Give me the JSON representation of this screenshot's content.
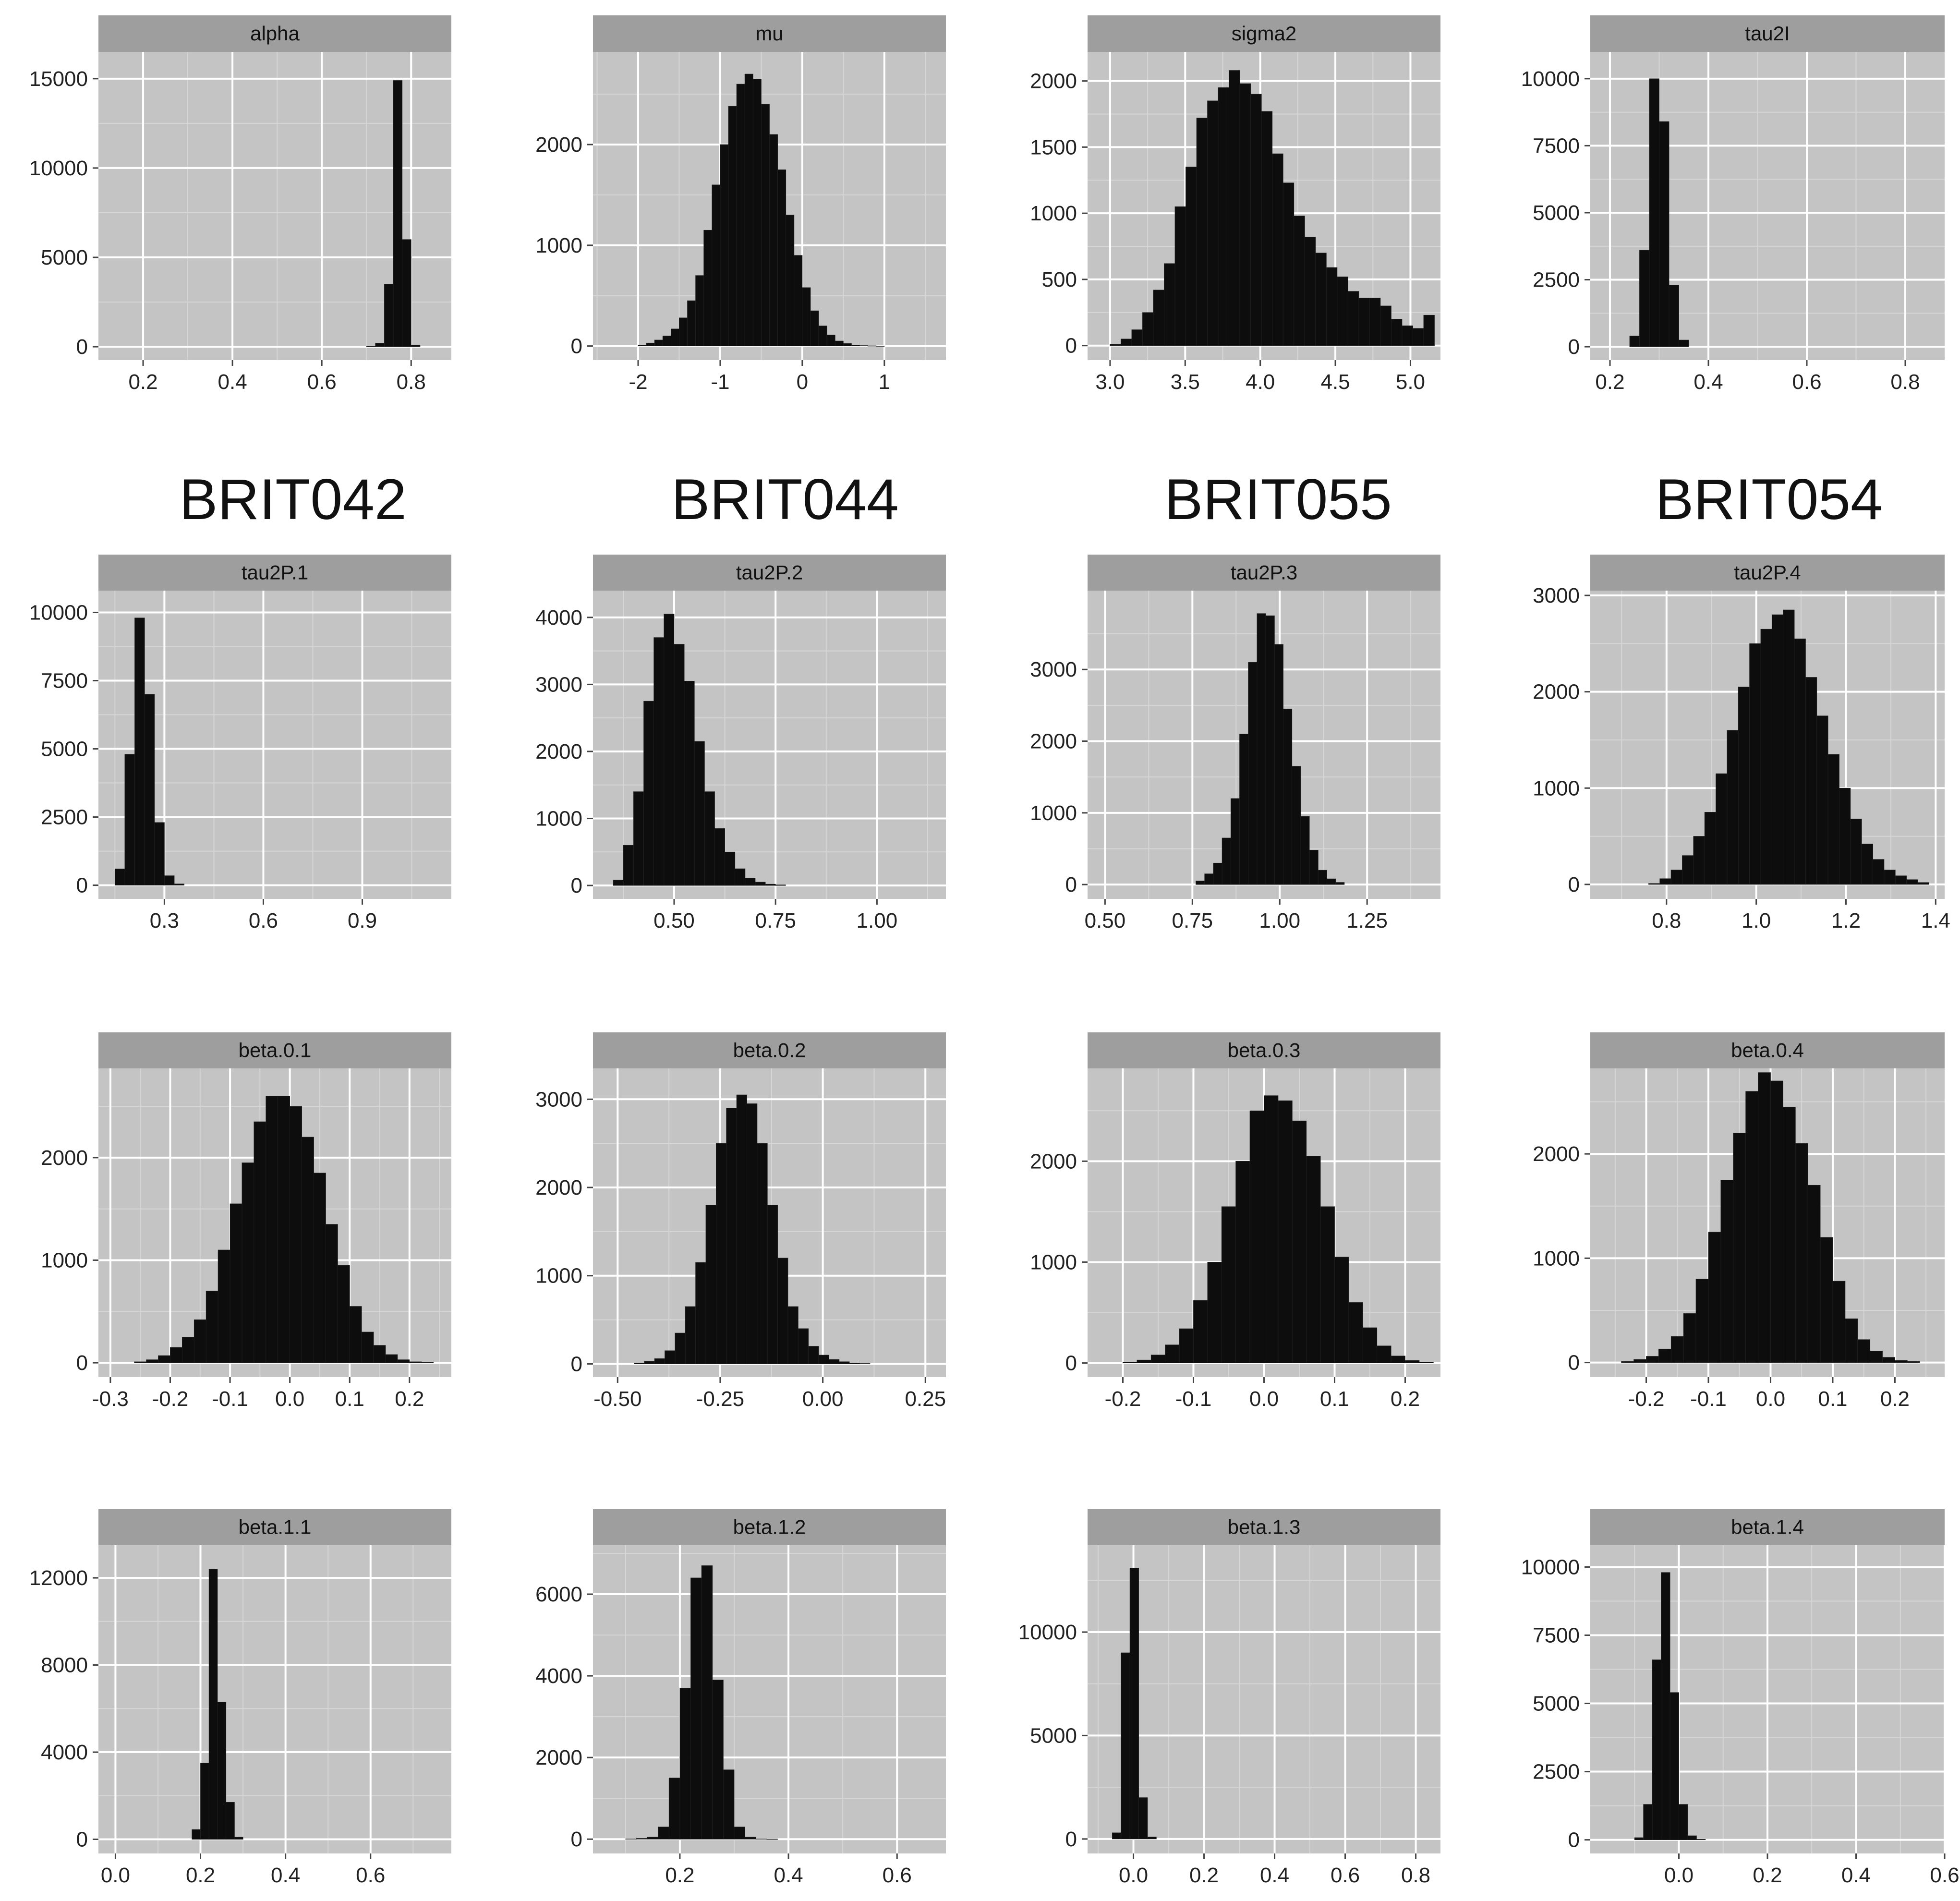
{
  "colors": {
    "panel": "#c4c4c4",
    "grid_major": "#ffffff",
    "grid_minor": "#d6d6d6",
    "strip": "#9e9e9e",
    "bar": "#0d0d0d",
    "tick_text": "#222222"
  },
  "group_titles": [
    "BRIT042",
    "BRIT044",
    "BRIT055",
    "BRIT054"
  ],
  "chart_data": [
    {
      "type": "histogram",
      "title": "alpha",
      "x_ticks": [
        0.2,
        0.4,
        0.6,
        0.8
      ],
      "x_tick_labels": [
        "0.2",
        "0.4",
        "0.6",
        "0.8"
      ],
      "xlim": [
        0.1,
        0.89
      ],
      "y_ticks": [
        0,
        5000,
        10000,
        15000
      ],
      "y_tick_labels": [
        "0",
        "5000",
        "10000",
        "15000"
      ],
      "ylim": [
        -750,
        16500
      ],
      "bin_start": 0.7,
      "bin_width": 0.02,
      "values": [
        20,
        200,
        3500,
        14900,
        6000,
        100
      ]
    },
    {
      "type": "histogram",
      "title": "mu",
      "x_ticks": [
        -2,
        -1,
        0,
        1
      ],
      "x_tick_labels": [
        "-2",
        "-1",
        "0",
        "1"
      ],
      "xlim": [
        -2.55,
        1.75
      ],
      "y_ticks": [
        0,
        1000,
        2000
      ],
      "y_tick_labels": [
        "0",
        "1000",
        "2000"
      ],
      "ylim": [
        -140,
        2920
      ],
      "bin_start": -2.0,
      "bin_width": 0.1,
      "values": [
        10,
        30,
        60,
        100,
        170,
        280,
        450,
        700,
        1150,
        1600,
        2000,
        2380,
        2600,
        2700,
        2650,
        2400,
        2100,
        1750,
        1300,
        900,
        580,
        350,
        200,
        110,
        50,
        25,
        10,
        5,
        3,
        1
      ]
    },
    {
      "type": "histogram",
      "title": "sigma2",
      "x_ticks": [
        3.0,
        3.5,
        4.0,
        4.5,
        5.0
      ],
      "x_tick_labels": [
        "3.0",
        "3.5",
        "4.0",
        "4.5",
        "5.0"
      ],
      "xlim": [
        2.85,
        5.2
      ],
      "y_ticks": [
        0,
        500,
        1000,
        1500,
        2000
      ],
      "y_tick_labels": [
        "0",
        "500",
        "1000",
        "1500",
        "2000"
      ],
      "ylim": [
        -110,
        2220
      ],
      "bin_start": 3.0,
      "bin_width": 0.072,
      "values": [
        10,
        50,
        120,
        250,
        420,
        620,
        1050,
        1350,
        1720,
        1850,
        1950,
        2080,
        1980,
        1900,
        1770,
        1450,
        1230,
        980,
        820,
        700,
        590,
        520,
        410,
        360,
        360,
        300,
        200,
        150,
        130,
        230
      ]
    },
    {
      "type": "histogram",
      "title": "tau2I",
      "x_ticks": [
        0.2,
        0.4,
        0.6,
        0.8
      ],
      "x_tick_labels": [
        "0.2",
        "0.4",
        "0.6",
        "0.8"
      ],
      "xlim": [
        0.16,
        0.88
      ],
      "y_ticks": [
        0,
        2500,
        5000,
        7500,
        10000
      ],
      "y_tick_labels": [
        "0",
        "2500",
        "5000",
        "7500",
        "10000"
      ],
      "ylim": [
        -500,
        11000
      ],
      "bin_start": 0.24,
      "bin_width": 0.02,
      "values": [
        400,
        3600,
        10000,
        8400,
        2300,
        250
      ]
    },
    {
      "type": "histogram",
      "title": "tau2P.1",
      "x_ticks": [
        0.3,
        0.6,
        0.9
      ],
      "x_tick_labels": [
        "0.3",
        "0.6",
        "0.9"
      ],
      "xlim": [
        0.1,
        1.17
      ],
      "y_ticks": [
        0,
        2500,
        5000,
        7500,
        10000
      ],
      "y_tick_labels": [
        "0",
        "2500",
        "5000",
        "7500",
        "10000"
      ],
      "ylim": [
        -500,
        10800
      ],
      "bin_start": 0.15,
      "bin_width": 0.03,
      "values": [
        600,
        4800,
        9800,
        7000,
        2300,
        350,
        50
      ]
    },
    {
      "type": "histogram",
      "title": "tau2P.2",
      "x_ticks": [
        0.5,
        0.75,
        1.0
      ],
      "x_tick_labels": [
        "0.50",
        "0.75",
        "1.00"
      ],
      "xlim": [
        0.3,
        1.17
      ],
      "y_ticks": [
        0,
        1000,
        2000,
        3000,
        4000
      ],
      "y_tick_labels": [
        "0",
        "1000",
        "2000",
        "3000",
        "4000"
      ],
      "ylim": [
        -200,
        4400
      ],
      "bin_start": 0.35,
      "bin_width": 0.025,
      "values": [
        80,
        600,
        1400,
        2750,
        3700,
        4050,
        3600,
        3050,
        2150,
        1400,
        850,
        500,
        250,
        110,
        50,
        20,
        10
      ]
    },
    {
      "type": "histogram",
      "title": "tau2P.3",
      "x_ticks": [
        0.5,
        0.75,
        1.0,
        1.25
      ],
      "x_tick_labels": [
        "0.50",
        "0.75",
        "1.00",
        "1.25"
      ],
      "xlim": [
        0.45,
        1.46
      ],
      "y_ticks": [
        0,
        1000,
        2000,
        3000
      ],
      "y_tick_labels": [
        "0",
        "1000",
        "2000",
        "3000"
      ],
      "ylim": [
        -200,
        4100
      ],
      "bin_start": 0.76,
      "bin_width": 0.025,
      "values": [
        50,
        150,
        300,
        650,
        1200,
        2100,
        3100,
        3780,
        3750,
        3350,
        2450,
        1650,
        950,
        480,
        200,
        80,
        30
      ]
    },
    {
      "type": "histogram",
      "title": "tau2P.4",
      "x_ticks": [
        0.8,
        1.0,
        1.2,
        1.4
      ],
      "x_tick_labels": [
        "0.8",
        "1.0",
        "1.2",
        "1.4"
      ],
      "xlim": [
        0.63,
        1.42
      ],
      "y_ticks": [
        0,
        1000,
        2000,
        3000
      ],
      "y_tick_labels": [
        "0",
        "1000",
        "2000",
        "3000"
      ],
      "ylim": [
        -150,
        3050
      ],
      "bin_start": 0.76,
      "bin_width": 0.025,
      "values": [
        10,
        60,
        150,
        300,
        500,
        750,
        1150,
        1600,
        2050,
        2500,
        2650,
        2800,
        2850,
        2550,
        2150,
        1750,
        1350,
        1000,
        680,
        420,
        260,
        150,
        90,
        50,
        20
      ]
    },
    {
      "type": "histogram",
      "title": "beta.0.1",
      "x_ticks": [
        -0.3,
        -0.2,
        -0.1,
        0.0,
        0.1,
        0.2
      ],
      "x_tick_labels": [
        "-0.3",
        "-0.2",
        "-0.1",
        "0.0",
        "0.1",
        "0.2"
      ],
      "xlim": [
        -0.32,
        0.27
      ],
      "y_ticks": [
        0,
        1000,
        2000
      ],
      "y_tick_labels": [
        "0",
        "1000",
        "2000"
      ],
      "ylim": [
        -140,
        2870
      ],
      "bin_start": -0.26,
      "bin_width": 0.02,
      "values": [
        10,
        30,
        70,
        150,
        250,
        420,
        700,
        1100,
        1550,
        1950,
        2350,
        2600,
        2600,
        2500,
        2200,
        1850,
        1350,
        950,
        550,
        300,
        170,
        80,
        30,
        10,
        5
      ]
    },
    {
      "type": "histogram",
      "title": "beta.0.2",
      "x_ticks": [
        -0.5,
        -0.25,
        0.0,
        0.25
      ],
      "x_tick_labels": [
        "-0.50",
        "-0.25",
        "0.00",
        "0.25"
      ],
      "xlim": [
        -0.56,
        0.3
      ],
      "y_ticks": [
        0,
        1000,
        2000,
        3000
      ],
      "y_tick_labels": [
        "0",
        "1000",
        "2000",
        "3000"
      ],
      "ylim": [
        -150,
        3350
      ],
      "bin_start": -0.46,
      "bin_width": 0.025,
      "values": [
        10,
        30,
        60,
        150,
        350,
        650,
        1150,
        1800,
        2500,
        2900,
        3050,
        2950,
        2500,
        1800,
        1200,
        650,
        400,
        200,
        100,
        50,
        25,
        10,
        5
      ]
    },
    {
      "type": "histogram",
      "title": "beta.0.3",
      "x_ticks": [
        -0.2,
        -0.1,
        0.0,
        0.1,
        0.2
      ],
      "x_tick_labels": [
        "-0.2",
        "-0.1",
        "0.0",
        "0.1",
        "0.2"
      ],
      "xlim": [
        -0.25,
        0.25
      ],
      "y_ticks": [
        0,
        1000,
        2000
      ],
      "y_tick_labels": [
        "0",
        "1000",
        "2000"
      ],
      "ylim": [
        -140,
        2920
      ],
      "bin_start": -0.2,
      "bin_width": 0.02,
      "values": [
        10,
        30,
        80,
        180,
        340,
        620,
        1000,
        1550,
        2000,
        2500,
        2650,
        2600,
        2400,
        2050,
        1550,
        1050,
        600,
        350,
        170,
        70,
        25,
        10
      ]
    },
    {
      "type": "histogram",
      "title": "beta.0.4",
      "x_ticks": [
        -0.2,
        -0.1,
        0.0,
        0.1,
        0.2
      ],
      "x_tick_labels": [
        "-0.2",
        "-0.1",
        "0.0",
        "0.1",
        "0.2"
      ],
      "xlim": [
        -0.29,
        0.28
      ],
      "y_ticks": [
        0,
        1000,
        2000
      ],
      "y_tick_labels": [
        "0",
        "1000",
        "2000"
      ],
      "ylim": [
        -140,
        2820
      ],
      "bin_start": -0.24,
      "bin_width": 0.02,
      "values": [
        10,
        30,
        60,
        130,
        250,
        470,
        800,
        1250,
        1750,
        2200,
        2600,
        2780,
        2700,
        2450,
        2100,
        1700,
        1200,
        780,
        420,
        220,
        110,
        50,
        20,
        10
      ]
    },
    {
      "type": "histogram",
      "title": "beta.1.1",
      "x_ticks": [
        0.0,
        0.2,
        0.4,
        0.6
      ],
      "x_tick_labels": [
        "0.0",
        "0.2",
        "0.4",
        "0.6"
      ],
      "xlim": [
        -0.04,
        0.79
      ],
      "y_ticks": [
        0,
        4000,
        8000,
        12000
      ],
      "y_tick_labels": [
        "0",
        "4000",
        "8000",
        "12000"
      ],
      "ylim": [
        -650,
        13500
      ],
      "bin_start": 0.18,
      "bin_width": 0.02,
      "values": [
        450,
        3500,
        12400,
        6300,
        1700,
        100
      ]
    },
    {
      "type": "histogram",
      "title": "beta.1.2",
      "x_ticks": [
        0.2,
        0.4,
        0.6
      ],
      "x_tick_labels": [
        "0.2",
        "0.4",
        "0.6"
      ],
      "xlim": [
        0.04,
        0.69
      ],
      "y_ticks": [
        0,
        2000,
        4000,
        6000
      ],
      "y_tick_labels": [
        "0",
        "2000",
        "4000",
        "6000"
      ],
      "ylim": [
        -350,
        7200
      ],
      "bin_start": 0.1,
      "bin_width": 0.02,
      "values": [
        10,
        20,
        50,
        300,
        1500,
        3700,
        6400,
        6700,
        3900,
        1700,
        300,
        50,
        10,
        5
      ]
    },
    {
      "type": "histogram",
      "title": "beta.1.3",
      "x_ticks": [
        0.0,
        0.2,
        0.4,
        0.6,
        0.8
      ],
      "x_tick_labels": [
        "0.0",
        "0.2",
        "0.4",
        "0.6",
        "0.8"
      ],
      "xlim": [
        -0.13,
        0.87
      ],
      "y_ticks": [
        0,
        5000,
        10000
      ],
      "y_tick_labels": [
        "0",
        "5000",
        "10000"
      ],
      "ylim": [
        -700,
        14200
      ],
      "bin_start": -0.06,
      "bin_width": 0.025,
      "values": [
        300,
        9000,
        13100,
        2000,
        100
      ]
    },
    {
      "type": "histogram",
      "title": "beta.1.4",
      "x_ticks": [
        0.0,
        0.2,
        0.4,
        0.6
      ],
      "x_tick_labels": [
        "0.0",
        "0.2",
        "0.4",
        "0.6"
      ],
      "xlim": [
        -0.2,
        0.6
      ],
      "y_ticks": [
        0,
        2500,
        5000,
        7500,
        10000
      ],
      "y_tick_labels": [
        "0",
        "2500",
        "5000",
        "7500",
        "10000"
      ],
      "ylim": [
        -500,
        10800
      ],
      "bin_start": -0.1,
      "bin_width": 0.02,
      "values": [
        80,
        1300,
        6600,
        9800,
        5400,
        1300,
        150,
        20
      ]
    }
  ]
}
